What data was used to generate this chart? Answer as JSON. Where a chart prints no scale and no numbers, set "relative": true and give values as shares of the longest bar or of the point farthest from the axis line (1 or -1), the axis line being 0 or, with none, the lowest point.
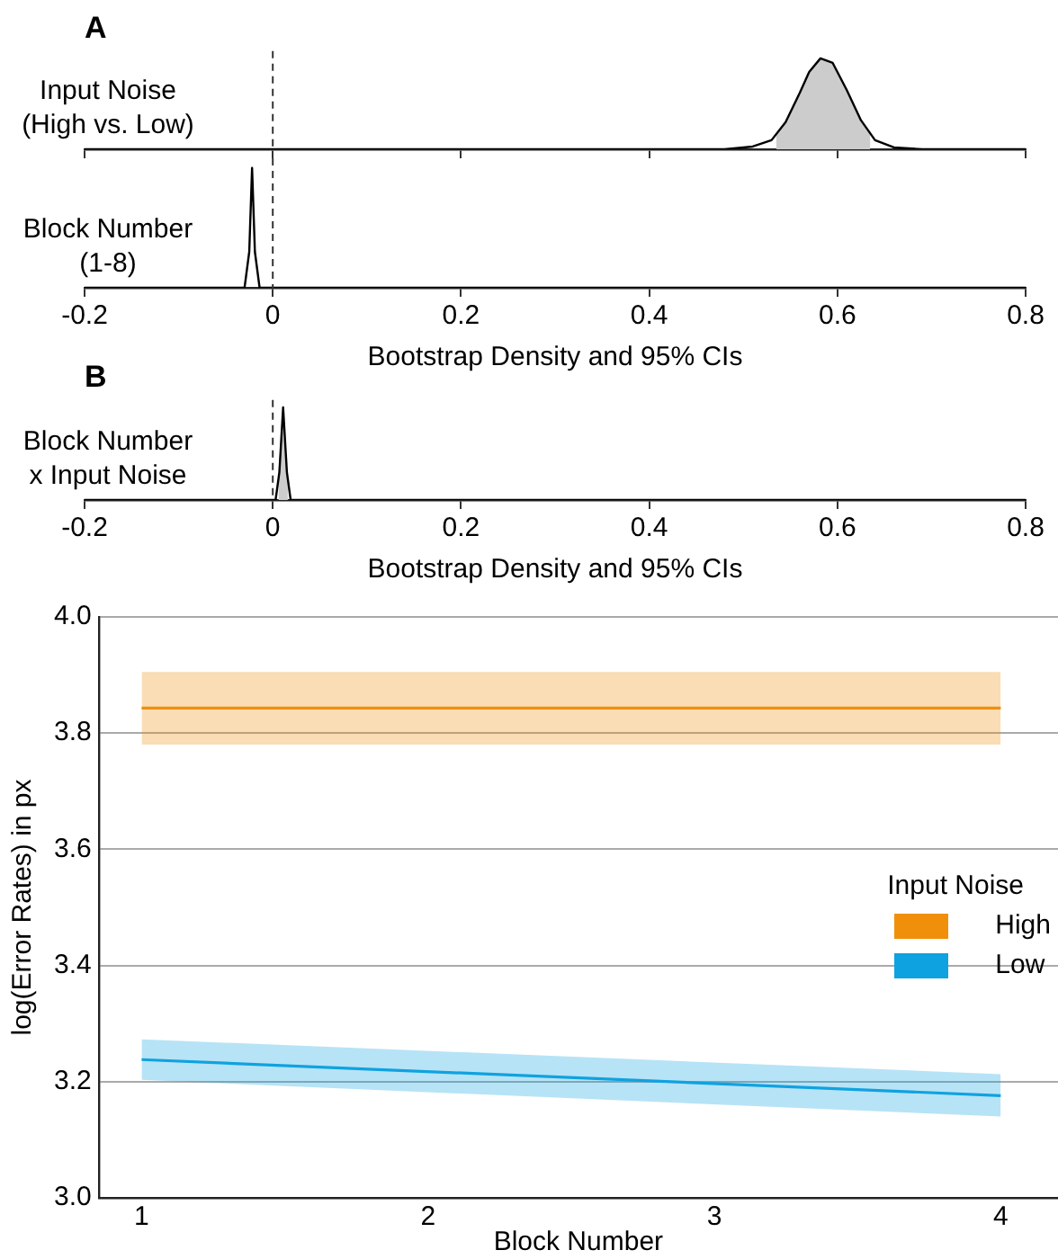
{
  "chart_data": [
    {
      "type": "line",
      "title": "A",
      "ylabel": "Input Noise (High vs. Low)",
      "relative": true,
      "xlim": [
        -0.2,
        0.8
      ],
      "xticks": [
        -0.2,
        0,
        0.2,
        0.4,
        0.6,
        0.8
      ],
      "tick_labels": false,
      "ref_lines": [
        {
          "axis": "x",
          "value": 0,
          "line_style": "dashed"
        }
      ],
      "series": [
        {
          "color": "#000000",
          "x": [
            -0.2,
            0.48,
            0.51,
            0.53,
            0.545,
            0.56,
            0.57,
            0.582,
            0.595,
            0.61,
            0.625,
            0.64,
            0.66,
            0.69,
            0.8
          ],
          "values": [
            0,
            0,
            0.03,
            0.1,
            0.3,
            0.62,
            0.85,
            1,
            0.95,
            0.65,
            0.32,
            0.1,
            0.02,
            0,
            0
          ]
        },
        {
          "type": "area",
          "color": "#cccccc",
          "x": [
            0.535,
            0.545,
            0.56,
            0.57,
            0.582,
            0.595,
            0.61,
            0.625,
            0.635
          ],
          "values": [
            0.15,
            0.3,
            0.62,
            0.85,
            1,
            0.95,
            0.65,
            0.32,
            0.17
          ]
        }
      ]
    },
    {
      "type": "line",
      "ylabel": "Block Number (1-8)",
      "xlabel": "Bootstrap Density and 95% CIs",
      "relative": true,
      "xlim": [
        -0.2,
        0.8
      ],
      "xticks": [
        -0.2,
        0,
        0.2,
        0.4,
        0.6,
        0.8
      ],
      "ref_lines": [
        {
          "axis": "x",
          "value": 0,
          "line_style": "dashed"
        }
      ],
      "series": [
        {
          "color": "#000000",
          "x": [
            -0.2,
            -0.03,
            -0.025,
            -0.022,
            -0.019,
            -0.014,
            0.8
          ],
          "values": [
            0,
            0,
            0.3,
            1,
            0.3,
            0,
            0
          ]
        }
      ]
    },
    {
      "type": "line",
      "title": "B",
      "ylabel": "Block Number x Input Noise",
      "xlabel": "Bootstrap Density and 95% CIs",
      "relative": true,
      "xlim": [
        -0.2,
        0.8
      ],
      "xticks": [
        -0.2,
        0,
        0.2,
        0.4,
        0.6,
        0.8
      ],
      "ref_lines": [
        {
          "axis": "x",
          "value": 0,
          "line_style": "dashed"
        }
      ],
      "series": [
        {
          "color": "#000000",
          "x": [
            -0.2,
            0.003,
            0.007,
            0.011,
            0.015,
            0.019,
            0.8
          ],
          "values": [
            0,
            0,
            0.3,
            1,
            0.3,
            0,
            0
          ]
        },
        {
          "type": "area",
          "color": "#cccccc",
          "x": [
            0.006,
            0.008,
            0.011,
            0.014,
            0.016
          ],
          "values": [
            0.15,
            0.5,
            1,
            0.5,
            0.15
          ]
        }
      ]
    },
    {
      "type": "line",
      "xlabel": "Block Number",
      "ylabel": "log(Error Rates) in px",
      "xlim": [
        0.85,
        4.2
      ],
      "xticks": [
        1,
        2,
        3,
        4
      ],
      "ylim": [
        3,
        4
      ],
      "yticks": [
        {
          "value": 3,
          "label": "3.0"
        },
        {
          "value": 3.2,
          "label": "3.2"
        },
        {
          "value": 3.4,
          "label": "3.4"
        },
        {
          "value": 3.6,
          "label": "3.6"
        },
        {
          "value": 3.8,
          "label": "3.8"
        },
        {
          "value": 4,
          "label": "4.0"
        }
      ],
      "grid": "y",
      "legend": "right",
      "legend_title": "Input Noise",
      "series": [
        {
          "name": "High",
          "color": "#f0900a",
          "x": [
            1,
            4
          ],
          "values": [
            3.843,
            3.843
          ],
          "lower": [
            3.78,
            3.78
          ],
          "upper": [
            3.905,
            3.905
          ]
        },
        {
          "name": "Low",
          "color": "#0fa2e0",
          "x": [
            1,
            4
          ],
          "values": [
            3.238,
            3.176
          ],
          "lower": [
            3.203,
            3.14
          ],
          "upper": [
            3.273,
            3.213
          ]
        }
      ]
    }
  ]
}
